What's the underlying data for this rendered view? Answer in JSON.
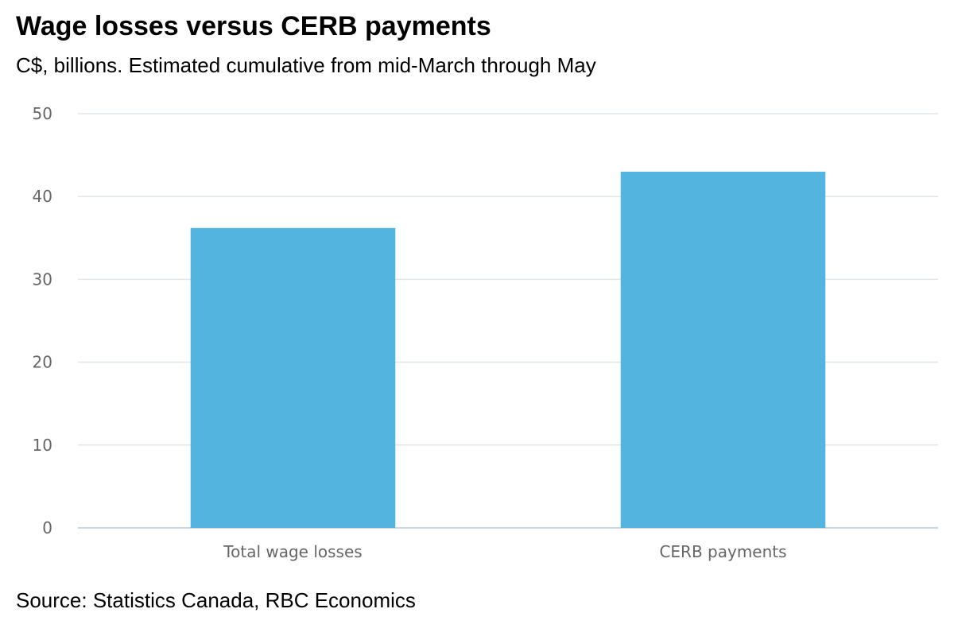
{
  "chart_data": {
    "type": "bar",
    "title": "Wage losses versus CERB payments",
    "subtitle": "C$, billions. Estimated cumulative from mid-March through May",
    "source": "Source: Statistics Canada, RBC Economics",
    "categories": [
      "Total wage losses",
      "CERB payments"
    ],
    "values": [
      36.2,
      43.0
    ],
    "ylim": [
      0,
      50
    ],
    "yticks": [
      0,
      10,
      20,
      30,
      40,
      50
    ],
    "grid": true,
    "legend": "none",
    "colors": {
      "bar": "#52b4df",
      "grid": "#e0e6ea",
      "axis": "#ccd6de"
    }
  }
}
